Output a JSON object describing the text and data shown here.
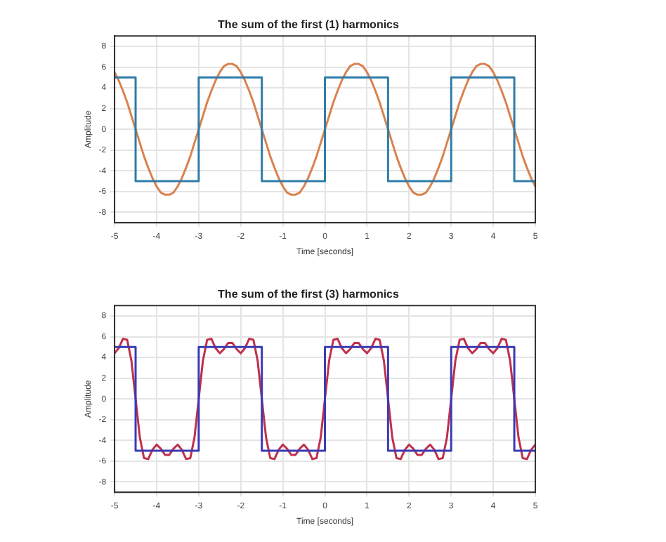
{
  "chart_data": [
    {
      "type": "line",
      "title": "The sum of the first (1) harmonics",
      "xlabel": "Time [seconds]",
      "ylabel": "Amplitude",
      "xlim": [
        -5,
        5
      ],
      "xticks": [
        -5,
        -4,
        -3,
        -2,
        -1,
        0,
        1,
        2,
        3,
        4,
        5
      ],
      "ylim": [
        -9,
        9
      ],
      "yticks": [
        -8,
        -6,
        -4,
        -2,
        0,
        2,
        4,
        6,
        8
      ],
      "grid": true,
      "legend": false,
      "marker": "none",
      "line_style": "solid",
      "x": [
        -5,
        -4.9,
        -4.8,
        -4.7,
        -4.6,
        -4.5,
        -4.4,
        -4.3,
        -4.2,
        -4.1,
        -4,
        -3.9,
        -3.8,
        -3.7,
        -3.6,
        -3.5,
        -3.4,
        -3.3,
        -3.2,
        -3.1,
        -3,
        -2.9,
        -2.8,
        -2.7,
        -2.6,
        -2.5,
        -2.4,
        -2.3,
        -2.2,
        -2.1,
        -2,
        -1.9,
        -1.8,
        -1.7,
        -1.6,
        -1.5,
        -1.4,
        -1.3,
        -1.2,
        -1.1,
        -1,
        -0.9,
        -0.8,
        -0.7,
        -0.6,
        -0.5,
        -0.4,
        -0.3,
        -0.2,
        -0.1,
        0,
        0.1,
        0.2,
        0.3,
        0.4,
        0.5,
        0.6,
        0.7,
        0.8,
        0.9,
        1,
        1.1,
        1.2,
        1.3,
        1.4,
        1.5,
        1.6,
        1.7,
        1.8,
        1.9,
        2,
        2.1,
        2.2,
        2.3,
        2.4,
        2.5,
        2.6,
        2.7,
        2.8,
        2.9,
        3,
        3.1,
        3.2,
        3.3,
        3.4,
        3.5,
        3.6,
        3.7,
        3.8,
        3.9,
        4,
        4.1,
        4.2,
        4.3,
        4.4,
        4.5,
        4.6,
        4.7,
        4.8,
        4.9,
        5
      ],
      "series": [
        {
          "color": "#2e7ca8",
          "x": [
            -5,
            -4.5,
            -4.5,
            -3,
            -3,
            -1.5,
            -1.5,
            0,
            0,
            1.5,
            1.5,
            3,
            3,
            4.5,
            4.5,
            5
          ],
          "values": [
            5,
            5,
            -5,
            -5,
            5,
            5,
            -5,
            -5,
            5,
            5,
            -5,
            -5,
            5,
            5,
            -5,
            -5
          ]
        },
        {
          "color": "#d9824f",
          "values": [
            5.5,
            4.7,
            3.7,
            2.6,
            1.3,
            0,
            -1.3,
            -2.6,
            -3.7,
            -4.7,
            -5.5,
            -6.1,
            -6.3,
            -6.3,
            -6.1,
            -5.5,
            -4.7,
            -3.7,
            -2.6,
            -1.3,
            0,
            1.3,
            2.6,
            3.7,
            4.7,
            5.5,
            6.1,
            6.3,
            6.3,
            6.1,
            5.5,
            4.7,
            3.7,
            2.6,
            1.3,
            0,
            -1.3,
            -2.6,
            -3.7,
            -4.7,
            -5.5,
            -6.1,
            -6.3,
            -6.3,
            -6.1,
            -5.5,
            -4.7,
            -3.7,
            -2.6,
            -1.3,
            0,
            1.3,
            2.6,
            3.7,
            4.7,
            5.5,
            6.1,
            6.3,
            6.3,
            6.1,
            5.5,
            4.7,
            3.7,
            2.6,
            1.3,
            0,
            -1.3,
            -2.6,
            -3.7,
            -4.7,
            -5.5,
            -6.1,
            -6.3,
            -6.3,
            -6.1,
            -5.5,
            -4.7,
            -3.7,
            -2.6,
            -1.3,
            0,
            1.3,
            2.6,
            3.7,
            4.7,
            5.5,
            6.1,
            6.3,
            6.3,
            6.1,
            5.5,
            4.7,
            3.7,
            2.6,
            1.3,
            0,
            -1.3,
            -2.6,
            -3.7,
            -4.7,
            -5.5
          ]
        }
      ]
    },
    {
      "type": "line",
      "title": "The sum of the first (3) harmonics",
      "xlabel": "Time [seconds]",
      "ylabel": "Amplitude",
      "xlim": [
        -5,
        5
      ],
      "xticks": [
        -5,
        -4,
        -3,
        -2,
        -1,
        0,
        1,
        2,
        3,
        4,
        5
      ],
      "ylim": [
        -9,
        9
      ],
      "yticks": [
        -8,
        -6,
        -4,
        -2,
        0,
        2,
        4,
        6,
        8
      ],
      "grid": true,
      "legend": false,
      "marker": "none",
      "line_style": "solid",
      "x": [
        -5,
        -4.9,
        -4.8,
        -4.7,
        -4.6,
        -4.5,
        -4.4,
        -4.3,
        -4.2,
        -4.1,
        -4,
        -3.9,
        -3.8,
        -3.7,
        -3.6,
        -3.5,
        -3.4,
        -3.3,
        -3.2,
        -3.1,
        -3,
        -2.9,
        -2.8,
        -2.7,
        -2.6,
        -2.5,
        -2.4,
        -2.3,
        -2.2,
        -2.1,
        -2,
        -1.9,
        -1.8,
        -1.7,
        -1.6,
        -1.5,
        -1.4,
        -1.3,
        -1.2,
        -1.1,
        -1,
        -0.9,
        -0.8,
        -0.7,
        -0.6,
        -0.5,
        -0.4,
        -0.3,
        -0.2,
        -0.1,
        0,
        0.1,
        0.2,
        0.3,
        0.4,
        0.5,
        0.6,
        0.7,
        0.8,
        0.9,
        1,
        1.1,
        1.2,
        1.3,
        1.4,
        1.5,
        1.6,
        1.7,
        1.8,
        1.9,
        2,
        2.1,
        2.2,
        2.3,
        2.4,
        2.5,
        2.6,
        2.7,
        2.8,
        2.9,
        3,
        3.1,
        3.2,
        3.3,
        3.4,
        3.5,
        3.6,
        3.7,
        3.8,
        3.9,
        4,
        4.1,
        4.2,
        4.3,
        4.4,
        4.5,
        4.6,
        4.7,
        4.8,
        4.9,
        5
      ],
      "series": [
        {
          "color": "#3a3ab5",
          "x": [
            -5,
            -4.5,
            -4.5,
            -3,
            -3,
            -1.5,
            -1.5,
            0,
            0,
            1.5,
            1.5,
            3,
            3,
            4.5,
            4.5,
            5
          ],
          "values": [
            5,
            5,
            -5,
            -5,
            5,
            5,
            -5,
            -5,
            5,
            5,
            -5,
            -5,
            5,
            5,
            -5,
            -5
          ]
        },
        {
          "color": "#c0304a",
          "values": [
            4.4,
            4.9,
            5.8,
            5.7,
            3.7,
            0,
            -3.7,
            -5.7,
            -5.8,
            -4.9,
            -4.4,
            -4.8,
            -5.4,
            -5.4,
            -4.8,
            -4.4,
            -4.9,
            -5.8,
            -5.7,
            -3.7,
            0,
            3.7,
            5.7,
            5.8,
            4.9,
            4.4,
            4.8,
            5.4,
            5.4,
            4.8,
            4.4,
            4.9,
            5.8,
            5.7,
            3.7,
            0,
            -3.7,
            -5.7,
            -5.8,
            -4.9,
            -4.4,
            -4.8,
            -5.4,
            -5.4,
            -4.8,
            -4.4,
            -4.9,
            -5.8,
            -5.7,
            -3.7,
            0,
            3.7,
            5.7,
            5.8,
            4.9,
            4.4,
            4.8,
            5.4,
            5.4,
            4.8,
            4.4,
            4.9,
            5.8,
            5.7,
            3.7,
            0,
            -3.7,
            -5.7,
            -5.8,
            -4.9,
            -4.4,
            -4.8,
            -5.4,
            -5.4,
            -4.8,
            -4.4,
            -4.9,
            -5.8,
            -5.7,
            -3.7,
            0,
            3.7,
            5.7,
            5.8,
            4.9,
            4.4,
            4.8,
            5.4,
            5.4,
            4.8,
            4.4,
            4.9,
            5.8,
            5.7,
            3.7,
            0,
            -3.7,
            -5.7,
            -5.8,
            -4.9,
            -4.4
          ]
        }
      ]
    }
  ]
}
